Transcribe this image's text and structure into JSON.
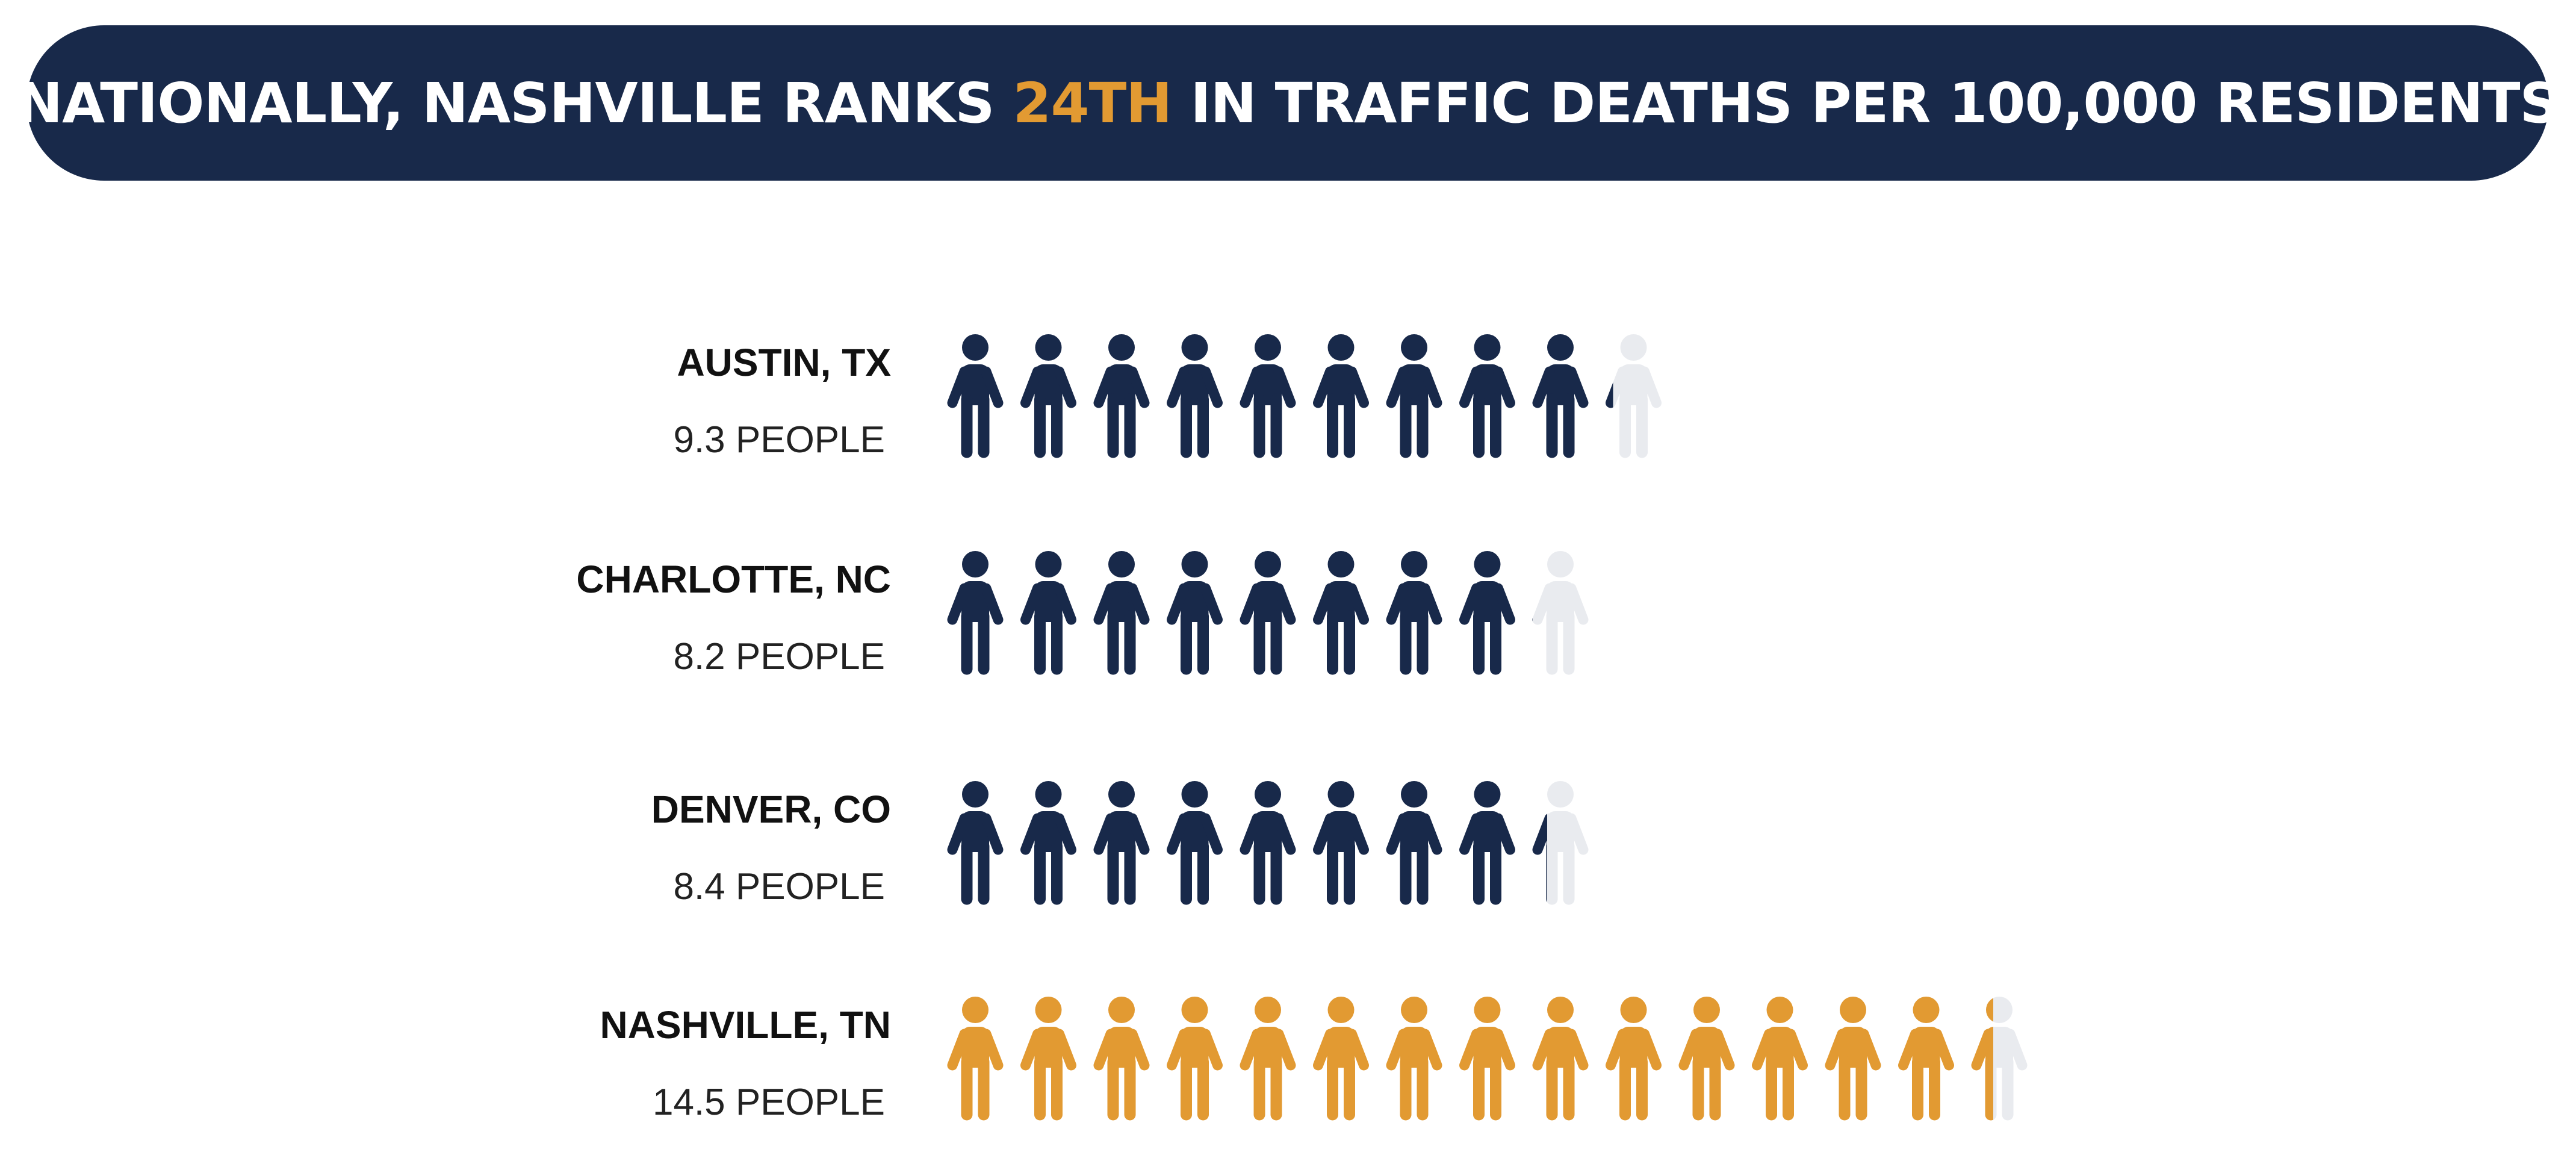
{
  "header": {
    "prefix": "NATIONALLY, NASHVILLE RANKS ",
    "highlight": "24TH",
    "suffix": " IN TRAFFIC DEATHS PER 100,000 RESIDENTS"
  },
  "colors": {
    "banner_bg": "#18294a",
    "highlight": "#e29a32",
    "icon_default": "#18294a",
    "icon_highlight": "#e29a32",
    "icon_empty": "#e9ebef"
  },
  "chart_data": {
    "type": "pictogram",
    "unit_per_icon": 1,
    "rows": [
      {
        "label": "AUSTIN, TX",
        "value_text": "9.3 PEOPLE",
        "value": 9.3,
        "highlight": false
      },
      {
        "label": "CHARLOTTE, NC",
        "value_text": "8.2 PEOPLE",
        "value": 8.2,
        "highlight": false
      },
      {
        "label": "DENVER, CO",
        "value_text": "8.4 PEOPLE",
        "value": 8.4,
        "highlight": false
      },
      {
        "label": "NASHVILLE, TN",
        "value_text": "14.5 PEOPLE",
        "value": 14.5,
        "highlight": true
      }
    ]
  }
}
